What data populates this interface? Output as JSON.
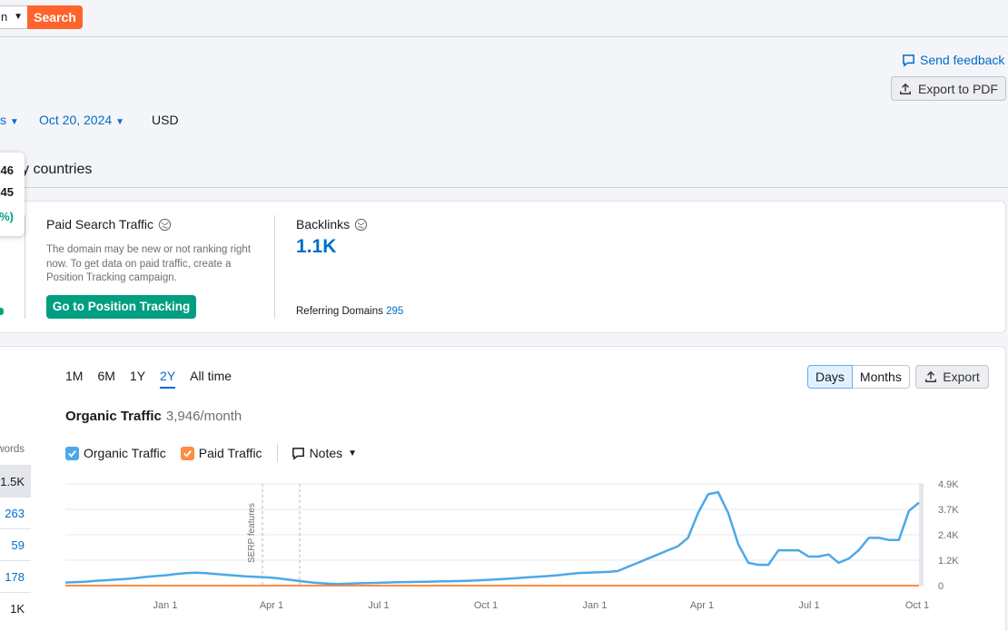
{
  "topbar": {
    "db_value": "n",
    "search_label": "Search"
  },
  "header": {
    "feedback_label": "Send feedback",
    "export_pdf_label": "Export to PDF"
  },
  "filters": {
    "truncated_value": "s",
    "date": "Oct 20, 2024",
    "currency": "USD"
  },
  "section_title": "y countries",
  "tooltip": {
    "line1": "46",
    "line2": "45",
    "line3": "%)"
  },
  "paid": {
    "title": "Paid Search Traffic",
    "description": "The domain may be new or not ranking right now. To get data on paid traffic, create a Position Tracking campaign.",
    "button_label": "Go to Position Tracking"
  },
  "backlinks": {
    "title": "Backlinks",
    "value": "1.1K",
    "ref_label": "Referring Domains",
    "ref_value": "295"
  },
  "ranges": [
    "1M",
    "6M",
    "1Y",
    "2Y",
    "All time"
  ],
  "active_range": "2Y",
  "granularity": {
    "days": "Days",
    "months": "Months",
    "export": "Export"
  },
  "organic": {
    "title": "Organic Traffic",
    "value": "3,946/month"
  },
  "legend": {
    "organic": "Organic Traffic",
    "paid": "Paid Traffic",
    "notes": "Notes"
  },
  "keywords": {
    "header": "words",
    "rows": [
      {
        "value": "1.5K",
        "highlight": true
      },
      {
        "value": "263"
      },
      {
        "value": "59"
      },
      {
        "value": "178"
      },
      {
        "value": "1K"
      }
    ]
  },
  "colors": {
    "organic": "#4ea8e8",
    "paid": "#ff8c42",
    "accent": "#006dca",
    "search": "#ff642d",
    "green": "#009f81"
  },
  "chart_data": {
    "type": "line",
    "x_ticks": [
      "Jan 1",
      "Apr 1",
      "Jul 1",
      "Oct 1",
      "Jan 1",
      "Apr 1",
      "Jul 1",
      "Oct 1"
    ],
    "y_ticks": [
      "4.9K",
      "3.7K",
      "2.4K",
      "1.2K",
      "0"
    ],
    "ylim": [
      0,
      4900
    ],
    "annotation": "SERP features",
    "series": [
      {
        "name": "Organic Traffic",
        "values": [
          150,
          170,
          190,
          230,
          260,
          290,
          320,
          360,
          420,
          460,
          500,
          560,
          600,
          620,
          600,
          560,
          520,
          480,
          440,
          420,
          400,
          360,
          300,
          240,
          180,
          130,
          100,
          80,
          90,
          110,
          120,
          130,
          150,
          160,
          170,
          180,
          190,
          200,
          210,
          220,
          230,
          250,
          270,
          300,
          330,
          360,
          400,
          430,
          460,
          500,
          550,
          600,
          620,
          640,
          660,
          700,
          900,
          1100,
          1300,
          1500,
          1700,
          1900,
          2300,
          3500,
          4400,
          4500,
          3500,
          2000,
          1100,
          1000,
          1000,
          1700,
          1700,
          1700,
          1400,
          1400,
          1500,
          1100,
          1300,
          1700,
          2300,
          2300,
          2200,
          2200,
          3600,
          4000
        ]
      },
      {
        "name": "Paid Traffic",
        "values": [
          0,
          0
        ]
      }
    ]
  }
}
